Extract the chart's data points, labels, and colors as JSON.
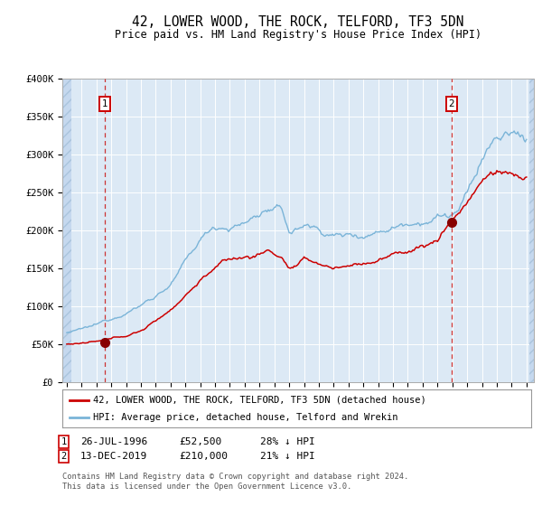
{
  "title": "42, LOWER WOOD, THE ROCK, TELFORD, TF3 5DN",
  "subtitle": "Price paid vs. HM Land Registry's House Price Index (HPI)",
  "ylim": [
    0,
    400000
  ],
  "yticks": [
    0,
    50000,
    100000,
    150000,
    200000,
    250000,
    300000,
    350000,
    400000
  ],
  "ytick_labels": [
    "£0",
    "£50K",
    "£100K",
    "£150K",
    "£200K",
    "£250K",
    "£300K",
    "£350K",
    "£400K"
  ],
  "xtick_years": [
    1994,
    1995,
    1996,
    1997,
    1998,
    1999,
    2000,
    2001,
    2002,
    2003,
    2004,
    2005,
    2006,
    2007,
    2008,
    2009,
    2010,
    2011,
    2012,
    2013,
    2014,
    2015,
    2016,
    2017,
    2018,
    2019,
    2020,
    2021,
    2022,
    2023,
    2024,
    2025
  ],
  "hpi_color": "#7ab4d8",
  "property_color": "#cc0000",
  "background_color": "#dce9f5",
  "sale1_date": 1996.57,
  "sale1_price": 52500,
  "sale2_date": 2019.95,
  "sale2_price": 210000,
  "vline_color": "#cc3333",
  "dot_color": "#880000",
  "legend1_label": "42, LOWER WOOD, THE ROCK, TELFORD, TF3 5DN (detached house)",
  "legend2_label": "HPI: Average price, detached house, Telford and Wrekin",
  "info1_box": "1",
  "info1_date": "26-JUL-1996",
  "info1_price": "£52,500",
  "info1_hpi": "28% ↓ HPI",
  "info2_box": "2",
  "info2_date": "13-DEC-2019",
  "info2_price": "£210,000",
  "info2_hpi": "21% ↓ HPI",
  "footer_line1": "Contains HM Land Registry data © Crown copyright and database right 2024.",
  "footer_line2": "This data is licensed under the Open Government Licence v3.0.",
  "title_fontsize": 10.5,
  "subtitle_fontsize": 8.5,
  "tick_fontsize": 7.5,
  "xlim_left": 1993.7,
  "xlim_right": 2025.5
}
